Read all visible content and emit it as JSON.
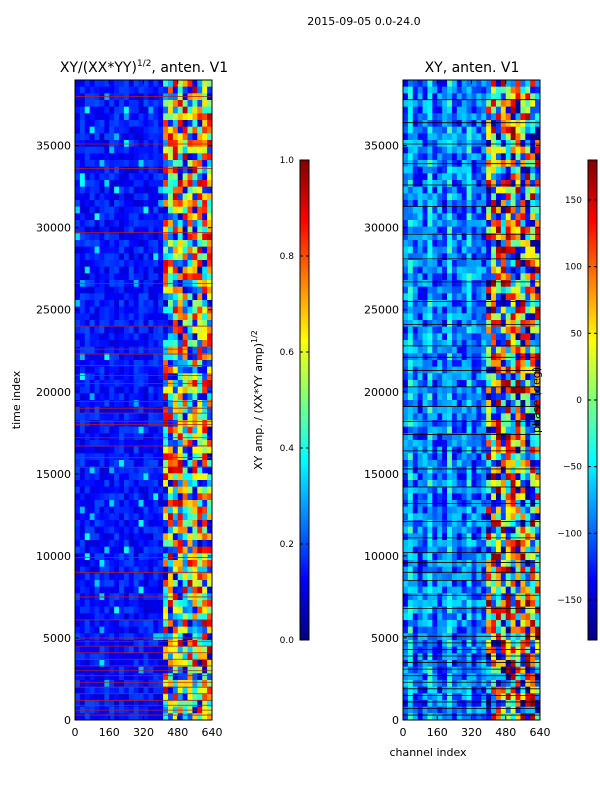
{
  "figure": {
    "suptitle": "2015-09-05 0.0-24.0"
  },
  "colors": {
    "jet": [
      "#00007f",
      "#0000ff",
      "#007fff",
      "#00ffff",
      "#7fff7f",
      "#ffff00",
      "#ff7f00",
      "#ff0000",
      "#7f0000"
    ],
    "flag_line_left": "#b02020",
    "flag_line_right": "#000000"
  },
  "chart_data": [
    {
      "type": "heatmap",
      "title": "XY/(XX*YY)^1/2, anten. V1",
      "title_main": "XY/(XX*YY)",
      "title_sup": "1/2",
      "title_rest": ", anten. V1",
      "xlabel": "",
      "ylabel": "time index",
      "xlim": [
        0,
        640
      ],
      "ylim": [
        0,
        39000
      ],
      "xticks": [
        0,
        160,
        320,
        480,
        640
      ],
      "yticks": [
        0,
        5000,
        10000,
        15000,
        20000,
        25000,
        30000,
        35000
      ],
      "quantity": "normalized XY amplitude",
      "colorbar": {
        "label_main": "XY amp. / (XX*YY amp)",
        "label_sup": "1/2",
        "range": [
          0.0,
          1.0
        ],
        "ticks": [
          "0.0",
          "0.2",
          "0.4",
          "0.6",
          "0.8",
          "1.0"
        ]
      },
      "regions": [
        {
          "channels": [
            0,
            400
          ],
          "typical_value": 0.1,
          "description": "low"
        },
        {
          "channels": [
            410,
            640
          ],
          "typical_value": 0.5,
          "description": "high, variable"
        }
      ],
      "flagged_time_indices": [
        300,
        600,
        900,
        1200,
        1600,
        2000,
        2300,
        2700,
        3000,
        3300,
        3700,
        4100,
        4500,
        4800,
        5000,
        6100,
        7500,
        9000,
        9900,
        15400,
        16000,
        16700,
        17200,
        18000,
        18200,
        18700,
        19000,
        19400,
        20500,
        21000,
        21600,
        22300,
        22600,
        24000,
        26600,
        29700,
        33600,
        35100,
        38000
      ]
    },
    {
      "type": "heatmap",
      "title": "XY, anten. V1",
      "xlabel": "channel index",
      "ylabel": "",
      "xlim": [
        0,
        640
      ],
      "ylim": [
        0,
        39000
      ],
      "xticks": [
        0,
        160,
        320,
        480,
        640
      ],
      "yticks": [
        0,
        5000,
        10000,
        15000,
        20000,
        25000,
        30000,
        35000
      ],
      "quantity": "XY phase",
      "colorbar": {
        "label": "phase (deg)",
        "range": [
          -180,
          180
        ],
        "ticks": [
          "−150",
          "−100",
          "−50",
          "0",
          "50",
          "100",
          "150"
        ],
        "tick_values": [
          -150,
          -100,
          -50,
          0,
          50,
          100,
          150
        ]
      },
      "regions": [
        {
          "channels": [
            0,
            390
          ],
          "typical_value_deg": -100,
          "description": "smooth"
        },
        {
          "channels": [
            390,
            640
          ],
          "typical_value_deg": 60,
          "description": "wrapping, variable"
        }
      ],
      "flagged_time_indices": [
        300,
        700,
        1100,
        1500,
        1900,
        2300,
        2700,
        3100,
        3500,
        3900,
        4300,
        4700,
        5100,
        6800,
        7600,
        8500,
        9000,
        9600,
        10200,
        11100,
        12100,
        13200,
        14200,
        15300,
        16400,
        17400,
        18200,
        19100,
        20300,
        21300,
        22100,
        22800,
        24100,
        25500,
        26700,
        28100,
        29600,
        31300,
        32600,
        33900,
        35100,
        36400,
        37800
      ]
    }
  ]
}
